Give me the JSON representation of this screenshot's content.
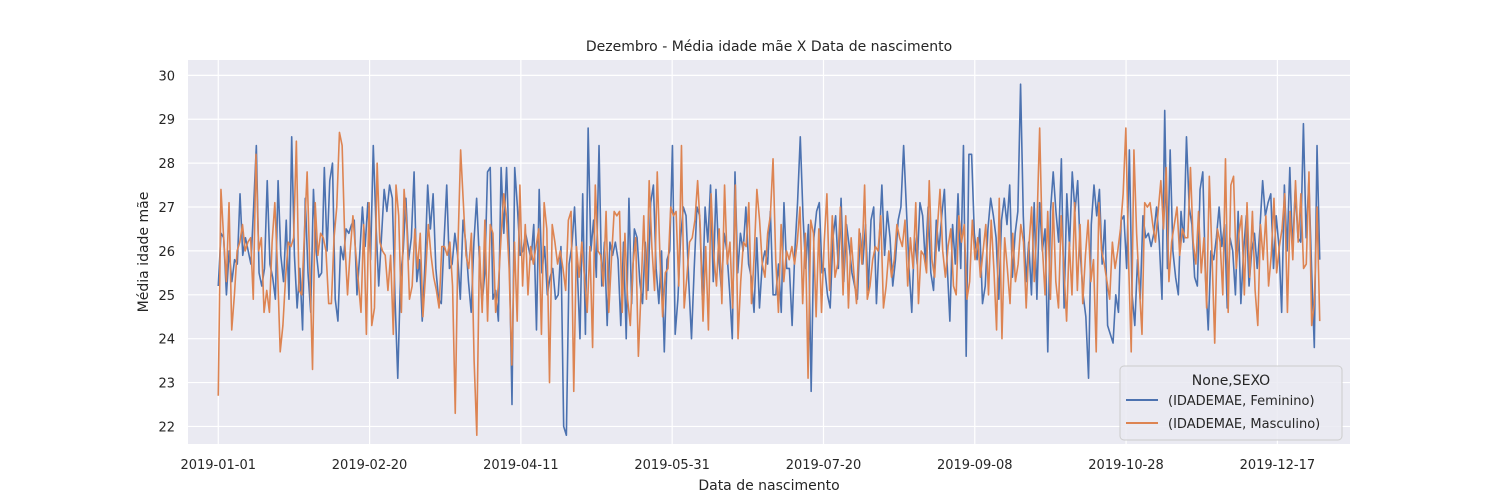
{
  "chart_data": {
    "type": "line",
    "title": "Dezembro - Média idade mãe X Data de nascimento",
    "xlabel": "Data de nascimento",
    "ylabel": "Média idade mãe",
    "x_start": "2019-01-01",
    "x_end": "2019-12-31",
    "xlim": [
      "2018-12-22",
      "2020-01-10"
    ],
    "ylim": [
      21.6,
      30.35
    ],
    "x_ticks": [
      "2019-01-01",
      "2019-02-20",
      "2019-04-11",
      "2019-05-31",
      "2019-07-20",
      "2019-09-08",
      "2019-10-28",
      "2019-12-17"
    ],
    "y_ticks": [
      22,
      23,
      24,
      25,
      26,
      27,
      28,
      29,
      30
    ],
    "grid": true,
    "background": "#EAEAF2",
    "legend": {
      "title": "None,SEXO",
      "position": "lower right"
    },
    "series": [
      {
        "name": "(IDADEMAE, Feminino)",
        "color": "#4C72B0",
        "values": [
          25.2,
          26.4,
          26.3,
          25.0,
          26.0,
          25.3,
          25.8,
          25.7,
          27.3,
          25.9,
          26.3,
          26.0,
          25.7,
          27.0,
          28.4,
          25.5,
          25.2,
          25.6,
          27.6,
          25.7,
          25.4,
          24.9,
          27.6,
          25.9,
          25.3,
          26.7,
          24.9,
          28.6,
          25.9,
          24.7,
          25.6,
          24.2,
          27.2,
          25.5,
          24.6,
          27.4,
          26.0,
          25.4,
          25.5,
          27.9,
          26.0,
          27.6,
          28.0,
          24.9,
          24.4,
          26.1,
          25.8,
          26.5,
          26.4,
          26.6,
          26.7,
          25.0,
          25.9,
          27.0,
          26.1,
          27.1,
          25.8,
          28.4,
          26.6,
          25.2,
          26.3,
          27.4,
          26.9,
          27.5,
          27.2,
          24.9,
          23.1,
          25.4,
          26.0,
          27.2,
          25.8,
          26.3,
          27.8,
          25.3,
          25.8,
          24.4,
          25.7,
          27.5,
          26.5,
          27.3,
          25.6,
          24.9,
          24.8,
          26.2,
          27.5,
          25.6,
          25.7,
          26.4,
          25.9,
          24.9,
          26.7,
          26.2,
          25.3,
          24.6,
          26.2,
          27.2,
          25.8,
          24.8,
          25.5,
          27.8,
          27.9,
          24.9,
          25.1,
          24.4,
          27.9,
          26.4,
          27.9,
          26.0,
          22.5,
          27.9,
          27.0,
          25.9,
          26.0,
          26.4,
          26.1,
          25.8,
          26.6,
          24.2,
          27.4,
          25.5,
          26.1,
          25.0,
          25.4,
          25.6,
          24.9,
          25.0,
          26.1,
          22.0,
          21.8,
          25.7,
          26.1,
          27.0,
          25.6,
          24.0,
          27.3,
          24.1,
          28.8,
          26.0,
          26.7,
          25.4,
          28.4,
          25.2,
          26.2,
          24.3,
          26.2,
          25.9,
          26.2,
          25.8,
          24.3,
          26.2,
          24.0,
          27.2,
          24.8,
          26.5,
          26.3,
          25.3,
          24.8,
          26.2,
          25.1,
          27.1,
          27.5,
          25.6,
          24.8,
          26.0,
          23.7,
          25.8,
          26.0,
          28.4,
          24.1,
          24.9,
          26.3,
          27.0,
          26.8,
          25.3,
          24.0,
          25.6,
          27.0,
          26.8,
          24.9,
          27.0,
          26.2,
          27.5,
          25.3,
          27.4,
          25.9,
          25.1,
          26.4,
          26.0,
          25.1,
          24.0,
          27.8,
          25.5,
          26.4,
          26.0,
          27.0,
          25.7,
          25.4,
          24.6,
          26.3,
          24.7,
          25.7,
          26.0,
          25.7,
          26.9,
          25.0,
          25.0,
          25.7,
          24.6,
          27.1,
          25.6,
          25.6,
          24.3,
          26.0,
          27.1,
          28.6,
          26.8,
          25.6,
          26.6,
          22.8,
          26.3,
          26.9,
          27.1,
          25.5,
          25.6,
          25.0,
          24.7,
          26.3,
          26.8,
          25.6,
          27.2,
          25.3,
          26.6,
          26.1,
          25.5,
          25.2,
          24.9,
          26.4,
          25.7,
          26.6,
          25.1,
          26.7,
          27.0,
          24.8,
          26.2,
          27.5,
          25.9,
          26.9,
          26.3,
          25.2,
          25.8,
          26.7,
          27.0,
          28.4,
          27.0,
          25.6,
          24.6,
          26.3,
          25.7,
          27.1,
          26.8,
          25.7,
          27.0,
          25.5,
          25.1,
          26.7,
          26.0,
          26.8,
          27.4,
          25.7,
          24.4,
          26.6,
          25.7,
          27.3,
          25.6,
          28.4,
          23.6,
          28.2,
          28.2,
          26.4,
          25.8,
          26.5,
          24.8,
          25.2,
          26.5,
          27.2,
          26.8,
          26.3,
          24.9,
          26.7,
          27.2,
          26.6,
          27.5,
          25.4,
          26.4,
          26.9,
          29.8,
          26.8,
          25.3,
          26.2,
          25.0,
          27.1,
          24.9,
          27.1,
          26.0,
          26.5,
          23.7,
          26.9,
          27.8,
          26.9,
          26.2,
          28.1,
          24.7,
          27.3,
          26.1,
          27.8,
          26.9,
          27.6,
          25.9,
          25.0,
          24.5,
          23.1,
          26.6,
          27.5,
          26.8,
          27.4,
          25.7,
          26.7,
          24.3,
          24.1,
          23.9,
          25.0,
          24.6,
          26.7,
          26.8,
          25.6,
          28.3,
          25.0,
          24.3,
          25.8,
          24.9,
          26.8,
          26.3,
          26.4,
          26.1,
          26.4,
          27.0,
          26.2,
          24.9,
          29.2,
          25.6,
          28.3,
          26.0,
          25.4,
          25.0,
          26.9,
          26.2,
          28.6,
          27.0,
          26.6,
          25.4,
          25.2,
          27.4,
          27.8,
          25.4,
          24.2,
          26.0,
          25.8,
          26.3,
          27.0,
          26.1,
          26.6,
          24.7,
          26.3,
          26.0,
          25.0,
          26.9,
          24.8,
          26.0,
          26.8,
          25.2,
          26.0,
          26.4,
          25.6,
          26.5,
          27.6,
          26.8,
          27.1,
          27.3,
          25.6,
          26.8,
          26.1,
          24.6,
          27.5,
          26.0,
          27.9,
          26.0,
          27.4,
          26.3,
          26.2,
          28.9,
          26.3,
          27.6,
          25.6,
          23.8,
          28.4,
          25.8
        ]
      },
      {
        "name": "(IDADEMAE, Masculino)",
        "color": "#DD8452",
        "values": [
          22.7,
          27.4,
          26.3,
          25.3,
          27.1,
          24.2,
          25.0,
          26.0,
          26.2,
          26.6,
          26.0,
          26.2,
          26.3,
          24.9,
          28.2,
          26.0,
          26.3,
          24.6,
          25.1,
          24.6,
          26.2,
          27.1,
          25.6,
          23.7,
          24.3,
          25.4,
          26.2,
          26.1,
          26.3,
          28.5,
          25.1,
          25.0,
          26.4,
          27.8,
          25.6,
          23.3,
          27.1,
          25.9,
          26.4,
          26.3,
          26.0,
          24.8,
          24.8,
          26.3,
          27.0,
          28.7,
          28.4,
          26.2,
          25.0,
          26.0,
          26.8,
          26.0,
          25.3,
          24.6,
          26.6,
          24.1,
          27.1,
          24.3,
          24.7,
          28.0,
          26.2,
          26.0,
          25.9,
          25.1,
          25.9,
          24.1,
          27.5,
          26.8,
          24.6,
          27.4,
          26.6,
          24.9,
          25.2,
          26.5,
          25.6,
          26.4,
          24.5,
          25.5,
          26.6,
          25.9,
          25.4,
          25.1,
          24.7,
          26.1,
          26.1,
          25.9,
          26.2,
          25.2,
          22.3,
          26.1,
          28.3,
          27.1,
          25.9,
          25.6,
          26.4,
          23.5,
          21.8,
          26.1,
          24.6,
          26.7,
          24.4,
          26.6,
          26.4,
          24.6,
          25.2,
          26.3,
          27.3,
          26.8,
          25.6,
          23.4,
          26.2,
          24.4,
          27.5,
          25.2,
          26.6,
          25.0,
          26.1,
          25.7,
          26.1,
          26.5,
          24.1,
          27.1,
          26.5,
          23.0,
          26.6,
          26.2,
          25.7,
          26.0,
          25.6,
          25.1,
          26.7,
          26.9,
          22.8,
          26.1,
          25.4,
          26.2,
          25.4,
          24.6,
          26.1,
          23.8,
          27.5,
          26.0,
          25.9,
          25.2,
          26.9,
          24.6,
          25.8,
          26.9,
          26.8,
          26.9,
          24.6,
          26.4,
          24.9,
          24.3,
          25.7,
          26.3,
          23.6,
          25.1,
          26.8,
          24.9,
          27.6,
          26.1,
          25.1,
          27.8,
          25.9,
          24.5,
          25.5,
          25.6,
          27.0,
          26.8,
          26.9,
          25.2,
          28.4,
          24.7,
          25.4,
          26.2,
          26.3,
          26.7,
          27.6,
          26.5,
          24.4,
          26.1,
          24.2,
          27.3,
          25.9,
          25.2,
          26.5,
          24.8,
          27.5,
          25.7,
          26.2,
          24.7,
          27.5,
          24.0,
          25.3,
          26.2,
          26.1,
          27.1,
          24.8,
          25.9,
          27.4,
          26.7,
          25.7,
          25.4,
          26.4,
          26.8,
          28.1,
          25.8,
          24.6,
          26.6,
          25.3,
          26.0,
          25.8,
          26.1,
          25.7,
          26.2,
          27.0,
          24.8,
          26.4,
          23.1,
          26.7,
          26.4,
          24.5,
          26.5,
          24.6,
          26.2,
          27.3,
          25.1,
          26.8,
          25.4,
          25.7,
          27.0,
          25.0,
          26.8,
          24.7,
          26.3,
          25.5,
          24.8,
          26.5,
          25.7,
          27.5,
          24.9,
          25.2,
          25.8,
          26.1,
          26.0,
          26.8,
          24.7,
          25.2,
          26.0,
          25.4,
          25.8,
          26.6,
          26.3,
          26.1,
          26.7,
          25.2,
          26.3,
          25.6,
          27.1,
          24.8,
          26.0,
          25.9,
          25.5,
          27.6,
          25.8,
          25.4,
          26.5,
          27.4,
          26.0,
          25.4,
          26.1,
          26.5,
          25.2,
          25.0,
          26.8,
          26.2,
          26.6,
          24.9,
          25.3,
          26.7,
          25.8,
          26.3,
          25.4,
          26.0,
          26.6,
          25.0,
          26.7,
          25.6,
          24.2,
          27.2,
          24.0,
          26.3,
          25.6,
          24.8,
          26.4,
          25.3,
          25.7,
          26.6,
          26.2,
          24.7,
          26.1,
          27.0,
          25.3,
          26.6,
          28.8,
          26.1,
          25.0,
          26.9,
          24.9,
          27.1,
          25.3,
          24.7,
          26.8,
          25.6,
          24.4,
          26.2,
          25.0,
          27.1,
          25.1,
          26.6,
          24.8,
          25.9,
          26.7,
          25.3,
          25.8,
          23.7,
          27.1,
          26.0,
          25.7,
          25.3,
          24.9,
          26.2,
          25.6,
          26.0,
          26.5,
          27.3,
          28.8,
          25.8,
          23.7,
          28.3,
          26.4,
          25.2,
          24.1,
          27.1,
          27.0,
          27.1,
          26.6,
          26.2,
          26.9,
          27.6,
          26.5,
          27.9,
          25.3,
          26.2,
          26.6,
          27.0,
          25.9,
          26.5,
          26.3,
          26.3,
          27.9,
          26.2,
          25.7,
          26.9,
          25.5,
          26.3,
          24.7,
          27.7,
          25.9,
          23.9,
          26.5,
          26.2,
          25.0,
          28.1,
          24.6,
          27.5,
          27.7,
          25.6,
          26.4,
          26.8,
          25.0,
          27.1,
          25.4,
          26.9,
          25.1,
          24.3,
          26.6,
          25.8,
          26.8,
          25.2,
          25.9,
          27.2,
          25.5,
          26.1,
          26.5,
          27.3,
          24.6,
          26.9,
          25.8,
          27.6,
          26.2,
          27.3,
          25.6,
          25.7,
          27.8,
          24.3,
          24.8,
          27.0,
          24.4
        ]
      }
    ]
  }
}
